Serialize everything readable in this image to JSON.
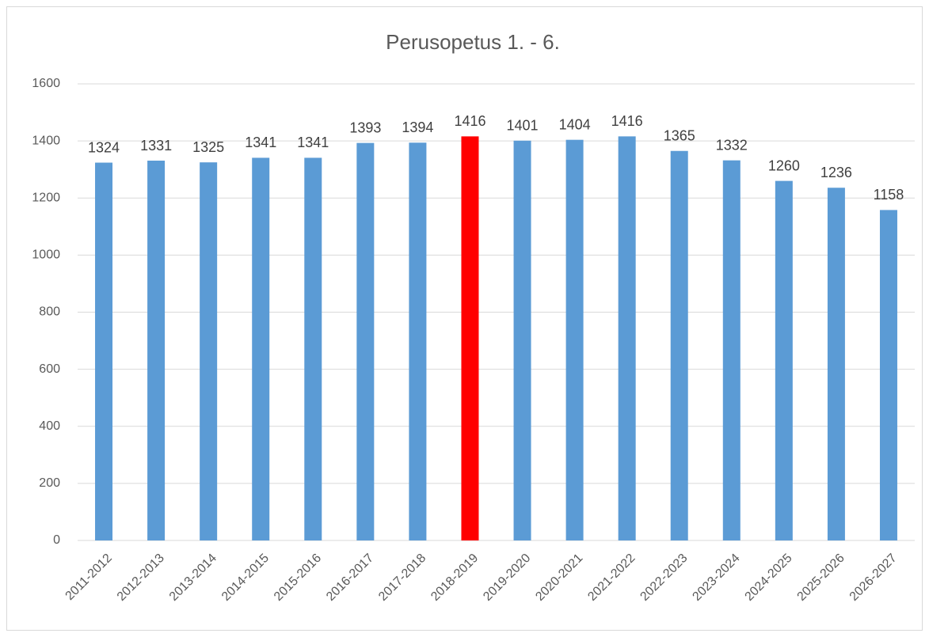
{
  "chart_data": {
    "type": "bar",
    "title": "Perusopetus  1. - 6.",
    "categories": [
      "2011-2012",
      "2012-2013",
      "2013-2014",
      "2014-2015",
      "2015-2016",
      "2016-2017",
      "2017-2018",
      "2018-2019",
      "2019-2020",
      "2020-2021",
      "2021-2022",
      "2022-2023",
      "2023-2024",
      "2024-2025",
      "2025-2026",
      "2026-2027"
    ],
    "values": [
      1324,
      1331,
      1325,
      1341,
      1341,
      1393,
      1394,
      1416,
      1401,
      1404,
      1416,
      1365,
      1332,
      1260,
      1236,
      1158
    ],
    "colors": [
      "#5b9bd5",
      "#5b9bd5",
      "#5b9bd5",
      "#5b9bd5",
      "#5b9bd5",
      "#5b9bd5",
      "#5b9bd5",
      "#ff0000",
      "#5b9bd5",
      "#5b9bd5",
      "#5b9bd5",
      "#5b9bd5",
      "#5b9bd5",
      "#5b9bd5",
      "#5b9bd5",
      "#5b9bd5"
    ],
    "ylim": [
      0,
      1600
    ],
    "yticks": [
      0,
      200,
      400,
      600,
      800,
      1000,
      1200,
      1400,
      1600
    ],
    "grid": true
  }
}
